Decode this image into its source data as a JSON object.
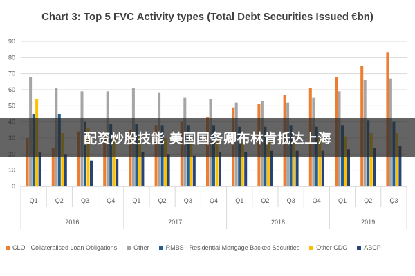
{
  "overlay_caption": "配资炒股技能 美国国务卿布林肯抵达上海",
  "chart_data": {
    "type": "bar",
    "title": "Chart 3: Top 5 FVC Activity types (Total Debt Securities Issued €bn)",
    "ylim": [
      0,
      90
    ],
    "yticks": [
      0,
      10,
      20,
      30,
      40,
      50,
      60,
      70,
      80,
      90
    ],
    "grid": true,
    "legend_position": "bottom",
    "categories": [
      "Q1",
      "Q2",
      "Q3",
      "Q4",
      "Q1",
      "Q2",
      "Q3",
      "Q4",
      "Q1",
      "Q2",
      "Q3",
      "Q4",
      "Q1",
      "Q2",
      "Q3"
    ],
    "year_groups": [
      {
        "label": "2016",
        "count": 4
      },
      {
        "label": "2017",
        "count": 4
      },
      {
        "label": "2018",
        "count": 4
      },
      {
        "label": "2019",
        "count": 3
      }
    ],
    "series": [
      {
        "name": "CLO - Collateralised Loan Obligations",
        "color": "#ed7d31",
        "values": [
          30,
          24,
          34,
          34,
          35,
          38,
          40,
          43,
          49,
          51,
          57,
          61,
          68,
          75,
          83
        ]
      },
      {
        "name": "Other",
        "color": "#a5a5a5",
        "values": [
          68,
          61,
          59,
          59,
          61,
          58,
          55,
          54,
          52,
          53,
          52,
          55,
          59,
          66,
          67
        ]
      },
      {
        "name": "RMBS - Residential Mortgage Backed Securities",
        "color": "#255e91",
        "values": [
          45,
          45,
          40,
          39,
          39,
          38,
          38,
          38,
          37,
          37,
          38,
          37,
          38,
          41,
          40
        ]
      },
      {
        "name": "Other CDO",
        "color": "#ffc000",
        "values": [
          54,
          33,
          36,
          32,
          31,
          30,
          29,
          29,
          27,
          28,
          30,
          30,
          31,
          33,
          33
        ]
      },
      {
        "name": "ABCP",
        "color": "#264478",
        "values": [
          21,
          20,
          16,
          17,
          21,
          20,
          19,
          21,
          21,
          22,
          22,
          22,
          23,
          24,
          25
        ]
      }
    ]
  }
}
